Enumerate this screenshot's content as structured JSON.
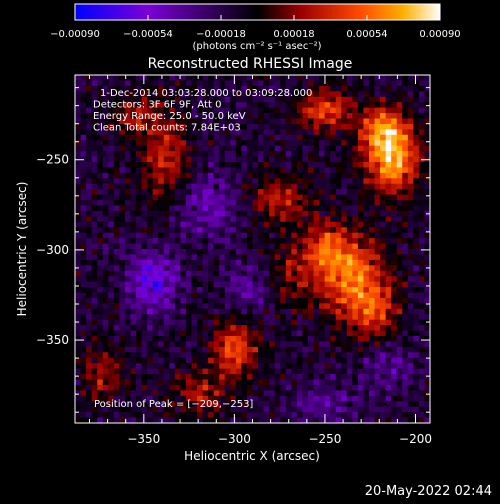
{
  "chart_data": {
    "type": "heatmap",
    "title": "Reconstructed RHESSI Image",
    "xlabel": "Heliocentric X (arcsec)",
    "ylabel": "Heliocentric Y (arcsec)",
    "xlim": [
      -388,
      -192
    ],
    "ylim": [
      -396,
      -203
    ],
    "x_ticks": [
      -350,
      -300,
      -250,
      -200
    ],
    "y_ticks": [
      -350,
      -300,
      -250
    ],
    "x_tick_labels": [
      "−350",
      "−300",
      "−250",
      "−200"
    ],
    "y_tick_labels": [
      "−350",
      "−300",
      "−250"
    ],
    "colorbar": {
      "min": -0.0009,
      "max": 0.0009,
      "ticks": [
        -0.0009,
        -0.00054,
        -0.00018,
        0.00018,
        0.00054,
        0.0009
      ],
      "tick_labels": [
        "−0.00090",
        "−0.00054",
        "−0.00018",
        "0.00018",
        "0.00054",
        "0.00090"
      ],
      "unit_label": "(photons cm⁻² s⁻¹ asec⁻²)",
      "colors": [
        "#0000ff",
        "#7a00d6",
        "#000000",
        "#9b0000",
        "#ff4a00",
        "#ffb000",
        "#ffffff"
      ]
    },
    "annotations": [
      "1-Dec-2014 03:03:28.000 to 03:09:28.000",
      "Detectors: 3F 6F 9F, Att 0",
      "Energy Range: 25.0 - 50.0 keV",
      "Clean     Total counts: 7.84E+03"
    ],
    "peak_label": "Position of Peak = [−209,−253]",
    "peak": [
      -209,
      -253
    ],
    "sources": [
      {
        "x": -213,
        "y": -248,
        "amp": 0.0009,
        "sx": 10,
        "sy": 14
      },
      {
        "x": -220,
        "y": -232,
        "amp": 0.00045,
        "sx": 9,
        "sy": 8
      },
      {
        "x": -250,
        "y": -222,
        "amp": 0.00055,
        "sx": 10,
        "sy": 8
      },
      {
        "x": -235,
        "y": -315,
        "amp": 0.0007,
        "sx": 13,
        "sy": 16
      },
      {
        "x": -250,
        "y": -298,
        "amp": 0.00045,
        "sx": 9,
        "sy": 9
      },
      {
        "x": -222,
        "y": -335,
        "amp": 0.0004,
        "sx": 9,
        "sy": 11
      },
      {
        "x": -275,
        "y": -272,
        "amp": 0.0004,
        "sx": 12,
        "sy": 10
      },
      {
        "x": -270,
        "y": -315,
        "amp": 0.0003,
        "sx": 12,
        "sy": 12
      },
      {
        "x": -300,
        "y": -355,
        "amp": 0.0006,
        "sx": 9,
        "sy": 10
      },
      {
        "x": -318,
        "y": -380,
        "amp": 0.00035,
        "sx": 11,
        "sy": 9
      },
      {
        "x": -338,
        "y": -250,
        "amp": 0.00045,
        "sx": 9,
        "sy": 18
      },
      {
        "x": -355,
        "y": -226,
        "amp": 0.00035,
        "sx": 9,
        "sy": 8
      },
      {
        "x": -372,
        "y": -370,
        "amp": 0.00035,
        "sx": 8,
        "sy": 10
      },
      {
        "x": -315,
        "y": -275,
        "amp": -0.0003,
        "sx": 14,
        "sy": 14
      },
      {
        "x": -345,
        "y": -318,
        "amp": -0.0005,
        "sx": 10,
        "sy": 12
      },
      {
        "x": -290,
        "y": -320,
        "amp": -0.0003,
        "sx": 10,
        "sy": 10
      },
      {
        "x": -250,
        "y": -385,
        "amp": -0.00025,
        "sx": 12,
        "sy": 8
      },
      {
        "x": -215,
        "y": -365,
        "amp": -0.00025,
        "sx": 10,
        "sy": 10
      }
    ],
    "grid": false
  },
  "footer": {
    "date_stamp": "20-May-2022 02:44"
  }
}
